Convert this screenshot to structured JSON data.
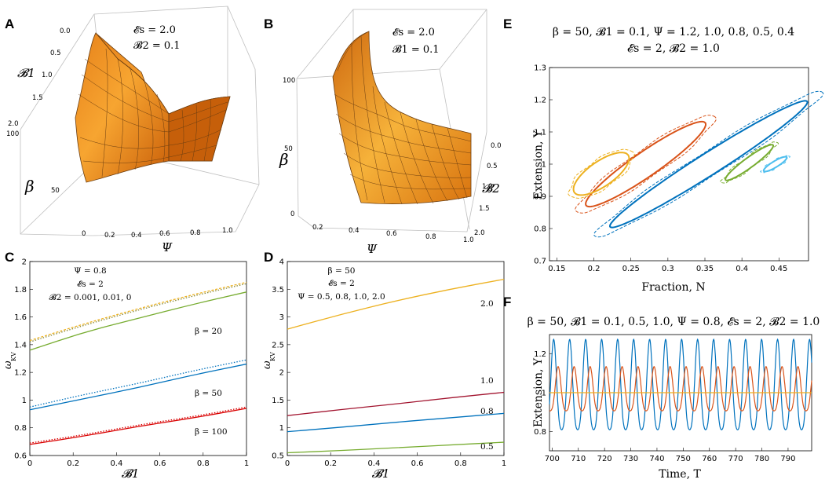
{
  "panel_labels": [
    "A",
    "B",
    "C",
    "D",
    "E",
    "F"
  ],
  "colors": {
    "orange_light": "#f7a531",
    "orange_dark": "#c55a05",
    "mesh": "#5a3a1a",
    "green": "#77ac30",
    "blue": "#0072bd",
    "red": "#d90000",
    "yellow": "#d4a626",
    "darkred": "#a2142f",
    "lightblue": "#4dbeee",
    "orange": "#d95319",
    "gold": "#edb120"
  },
  "chart_data": [
    {
      "id": "A",
      "type": "surface",
      "annotations": [
        "𝓔s = 2.0",
        "𝓑2 = 0.1"
      ],
      "axes": {
        "x": {
          "label": "Ψ",
          "ticks": [
            "0.2",
            "0.4",
            "0.6",
            "0.8",
            "1.0"
          ],
          "range": [
            0.1,
            1.0
          ]
        },
        "y": {
          "label": "𝓑1",
          "ticks": [
            "0.0",
            "0.5",
            "1.0",
            "1.5",
            "2.0"
          ],
          "range": [
            0,
            2
          ]
        },
        "z": {
          "label": "β",
          "ticks": [
            "0",
            "50",
            "100"
          ],
          "range": [
            0,
            100
          ]
        }
      }
    },
    {
      "id": "B",
      "type": "surface",
      "annotations": [
        "𝓔s = 2.0",
        "𝓑1 = 0.1"
      ],
      "axes": {
        "x": {
          "label": "Ψ",
          "ticks": [
            "0.2",
            "0.4",
            "0.6",
            "0.8",
            "1.0"
          ],
          "range": [
            0.1,
            1.0
          ]
        },
        "y": {
          "label": "𝓑2",
          "ticks": [
            "0.0",
            "0.5",
            "1.0",
            "1.5",
            "2.0"
          ],
          "range": [
            0,
            2
          ]
        },
        "z": {
          "label": "β",
          "ticks": [
            "0",
            "50",
            "100"
          ],
          "range": [
            0,
            100
          ]
        }
      }
    },
    {
      "id": "C",
      "type": "line",
      "xlabel": "𝓑1",
      "ylabel": "ω",
      "ylabel_sub": "KV",
      "xlim": [
        0,
        1
      ],
      "ylim": [
        0.6,
        2.0
      ],
      "xticks": [
        "0",
        "0.2",
        "0.4",
        "0.6",
        "0.8",
        "1"
      ],
      "yticks": [
        "0.6",
        "0.8",
        "1",
        "1.2",
        "1.4",
        "1.6",
        "1.8",
        "2"
      ],
      "annotations": [
        "Ψ = 0.8",
        "𝓔s = 2",
        "𝓑2 = 0.001, 0.01, 0"
      ],
      "curve_labels": [
        "β = 20",
        "β = 50",
        "β = 100"
      ],
      "x": [
        0,
        0.25,
        0.5,
        0.75,
        1.0
      ],
      "series": [
        {
          "name": "β=20, 𝓑2=0.001",
          "color": "#77ac30",
          "dash": "",
          "values": [
            1.36,
            1.49,
            1.59,
            1.69,
            1.78
          ]
        },
        {
          "name": "β=20, 𝓑2=0.01",
          "color": "#edb120",
          "dash": "3,2",
          "values": [
            1.43,
            1.55,
            1.66,
            1.76,
            1.85
          ]
        },
        {
          "name": "β=20, 𝓑2=0",
          "color": "#8a8a3a",
          "dash": "1.5,2",
          "values": [
            1.42,
            1.54,
            1.65,
            1.75,
            1.84
          ]
        },
        {
          "name": "β=50, 𝓑2=0.001",
          "color": "#0072bd",
          "dash": "",
          "values": [
            0.93,
            1.01,
            1.09,
            1.18,
            1.26
          ]
        },
        {
          "name": "β=50, 𝓑2=0.01",
          "color": "#0072bd",
          "dash": "1.5,2",
          "values": [
            0.95,
            1.04,
            1.12,
            1.21,
            1.29
          ]
        },
        {
          "name": "β=100, 𝓑2=0.001",
          "color": "#d90000",
          "dash": "",
          "values": [
            0.68,
            0.74,
            0.81,
            0.87,
            0.94
          ]
        },
        {
          "name": "β=100, 𝓑2=0.01",
          "color": "#d90000",
          "dash": "1.5,2",
          "values": [
            0.69,
            0.75,
            0.82,
            0.88,
            0.95
          ]
        }
      ]
    },
    {
      "id": "D",
      "type": "line",
      "xlabel": "𝓑1",
      "ylabel": "ω",
      "ylabel_sub": "KV",
      "xlim": [
        0,
        1
      ],
      "ylim": [
        0.5,
        4.0
      ],
      "xticks": [
        "0",
        "0.2",
        "0.4",
        "0.6",
        "0.8",
        "1"
      ],
      "yticks": [
        "0.5",
        "1",
        "1.5",
        "2",
        "2.5",
        "3",
        "3.5",
        "4"
      ],
      "annotations": [
        "β = 50",
        "𝓔s = 2",
        "Ψ = 0.5, 0.8, 1.0, 2.0"
      ],
      "curve_labels": [
        "2.0",
        "1.0",
        "0.8",
        "0.5"
      ],
      "x": [
        0,
        0.25,
        0.5,
        0.75,
        1.0
      ],
      "series": [
        {
          "name": "Ψ=2.0",
          "color": "#edb120",
          "dash": "",
          "values": [
            2.78,
            3.05,
            3.29,
            3.5,
            3.68
          ]
        },
        {
          "name": "Ψ=1.0",
          "color": "#a2142f",
          "dash": "",
          "values": [
            1.22,
            1.33,
            1.43,
            1.54,
            1.64
          ]
        },
        {
          "name": "Ψ=0.8",
          "color": "#0072bd",
          "dash": "",
          "values": [
            0.93,
            1.01,
            1.1,
            1.18,
            1.26
          ]
        },
        {
          "name": "Ψ=0.5",
          "color": "#77ac30",
          "dash": "",
          "values": [
            0.55,
            0.59,
            0.64,
            0.69,
            0.74
          ]
        }
      ]
    },
    {
      "id": "E",
      "type": "line",
      "title1": "β = 50,  𝓑1 = 0.1,  Ψ = 1.2, 1.0, 0.8, 0.5, 0.4",
      "title2": "𝓔s = 2,  𝓑2 = 1.0",
      "xlabel": "Fraction,  N",
      "ylabel": "Extension,  Y",
      "xlim": [
        0.14,
        0.49
      ],
      "ylim": [
        0.7,
        1.3
      ],
      "xticks": [
        "0.15",
        "0.2",
        "0.25",
        "0.3",
        "0.35",
        "0.4",
        "0.45"
      ],
      "yticks": [
        "0.7",
        "0.8",
        "0.9",
        "1",
        "1.1",
        "1.2",
        "1.3"
      ],
      "series": [
        {
          "name": "Ψ=1.2",
          "color": "#0072bd",
          "cx": 0.355,
          "cy": 1.0,
          "a": 0.175,
          "b": 0.018,
          "angle": -40.6
        },
        {
          "name": "Ψ=1.0",
          "color": "#d95319",
          "cx": 0.27,
          "cy": 1.0,
          "a": 0.11,
          "b": 0.02,
          "angle": -43.4
        },
        {
          "name": "Ψ=0.8",
          "color": "#edb120",
          "cx": 0.21,
          "cy": 0.97,
          "a": 0.05,
          "b": 0.02,
          "angle": -46
        },
        {
          "name": "Ψ=0.5",
          "color": "#77ac30",
          "cx": 0.41,
          "cy": 1.005,
          "a": 0.045,
          "b": 0.008,
          "angle": -45
        },
        {
          "name": "Ψ=0.4",
          "color": "#4dbeee",
          "cx": 0.445,
          "cy": 1.0,
          "a": 0.02,
          "b": 0.005,
          "angle": -40
        }
      ]
    },
    {
      "id": "F",
      "type": "line",
      "title": "β = 50,  𝓑1 = 0.1, 0.5, 1.0,  Ψ = 0.8,  𝓔s = 2,  𝓑2 = 1.0",
      "xlabel": "Time,  T",
      "ylabel": "Extension,  Y",
      "xlim": [
        699,
        799
      ],
      "ylim": [
        0.7,
        1.3
      ],
      "xticks": [
        "700",
        "710",
        "720",
        "730",
        "740",
        "750",
        "760",
        "770",
        "780",
        "790"
      ],
      "yticks": [
        "0.8",
        "1",
        "1.2"
      ],
      "series": [
        {
          "name": "𝓑1=0.1",
          "color": "#0072bd",
          "mean": 1.0,
          "amp": 0.245,
          "period": 6.1,
          "phase": 700.6
        },
        {
          "name": "𝓑1=0.5",
          "color": "#d95319",
          "mean": 1.0,
          "amp": 0.12,
          "period": 6.1,
          "phase": 702.3
        },
        {
          "name": "𝓑1=1.0",
          "color": "#edb120",
          "mean": 1.0,
          "amp": 0.0,
          "period": 6.1,
          "phase": 0
        }
      ]
    }
  ]
}
